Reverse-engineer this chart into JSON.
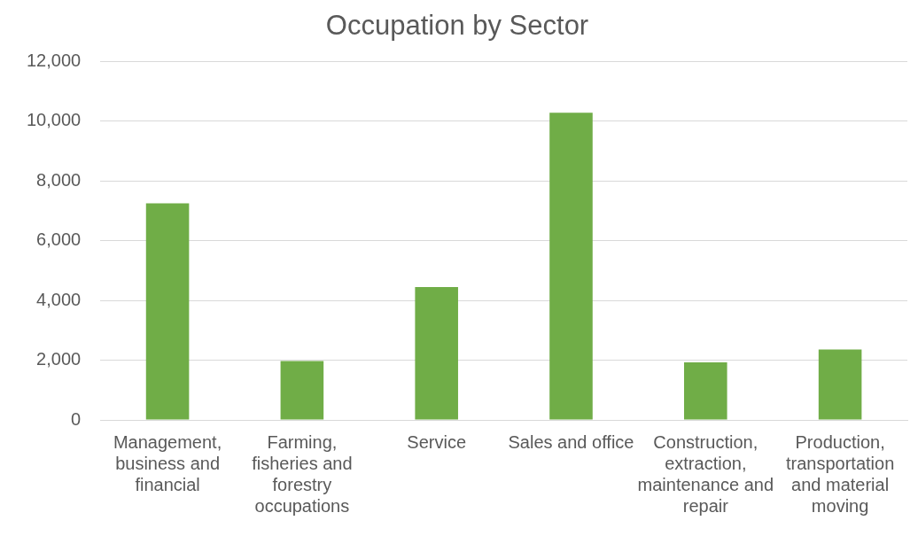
{
  "chart_data": {
    "type": "bar",
    "title": "Occupation by Sector",
    "categories": [
      "Management, business and financial",
      "Farming, fisheries and forestry occupations",
      "Service",
      "Sales and office",
      "Construction, extraction, maintenance and repair",
      "Production, transportation and material moving"
    ],
    "values": [
      7250,
      1970,
      4450,
      10280,
      1930,
      2360
    ],
    "color": "#70ad47",
    "ylim": [
      0,
      12000
    ],
    "yticks": [
      0,
      {
        "value": 2000,
        "label": "2,000"
      },
      {
        "value": 4000,
        "label": "4,000"
      },
      {
        "value": 6000,
        "label": "6,000"
      },
      {
        "value": 8000,
        "label": "8,000"
      },
      {
        "value": 10000,
        "label": "10,000"
      },
      {
        "value": 12000,
        "label": "12,000"
      }
    ],
    "grid": "y",
    "legend": false
  }
}
